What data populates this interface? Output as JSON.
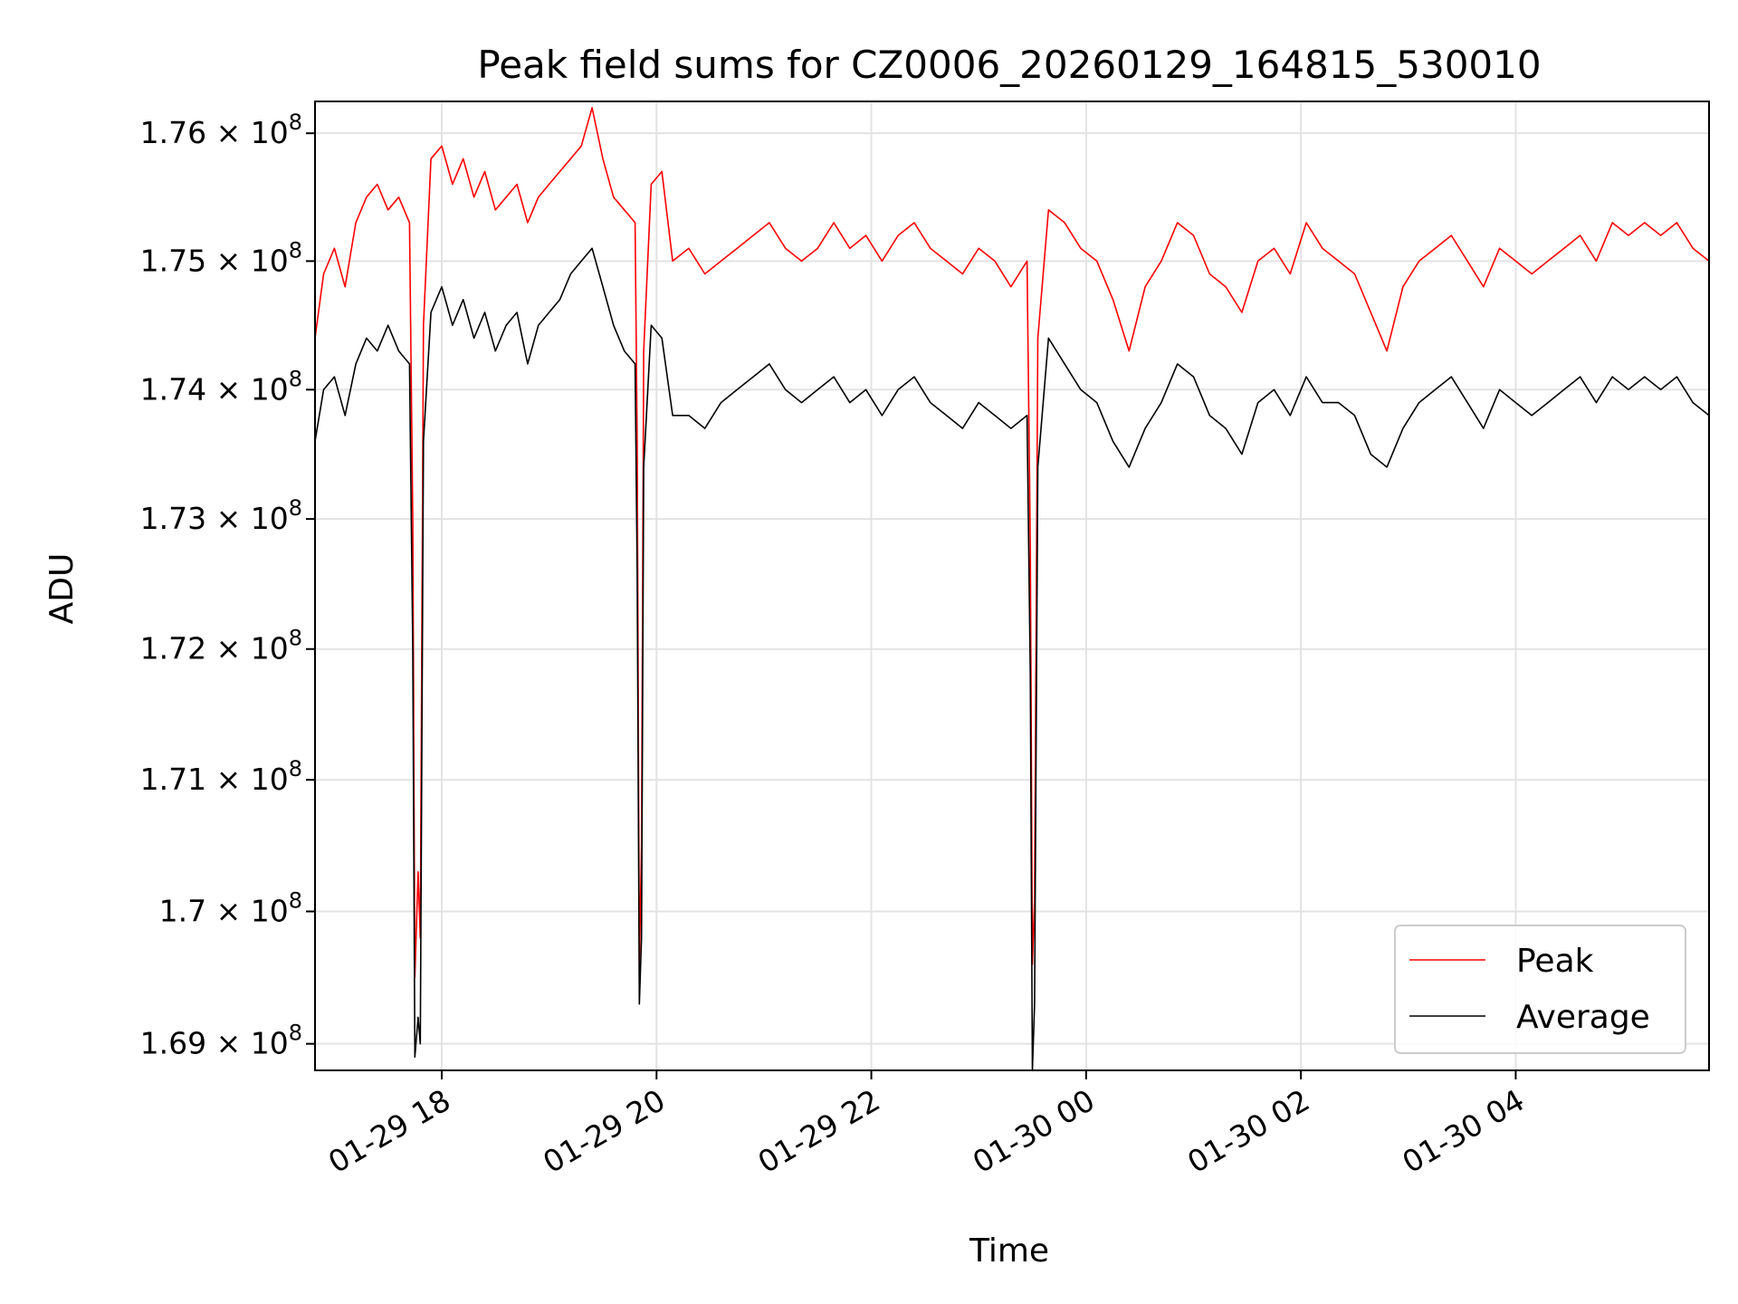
{
  "chart_data": {
    "type": "line",
    "title": "Peak field sums for CZ0006_20260129_164815_530010",
    "xlabel": "Time",
    "ylabel": "ADU",
    "y_scale": "log",
    "ylim": [
      168800000,
      176250000
    ],
    "xlim_hours": [
      16.82,
      29.8
    ],
    "grid": true,
    "legend_position": "lower-right",
    "x_ticks": [
      {
        "hours": 18,
        "label": "01-29 18"
      },
      {
        "hours": 20,
        "label": "01-29 20"
      },
      {
        "hours": 22,
        "label": "01-29 22"
      },
      {
        "hours": 24,
        "label": "01-30 00"
      },
      {
        "hours": 26,
        "label": "01-30 02"
      },
      {
        "hours": 28,
        "label": "01-30 04"
      }
    ],
    "y_ticks": [
      {
        "value": 169000000,
        "mantissa": "1.69"
      },
      {
        "value": 170000000,
        "mantissa": "1.7"
      },
      {
        "value": 171000000,
        "mantissa": "1.71"
      },
      {
        "value": 172000000,
        "mantissa": "1.72"
      },
      {
        "value": 173000000,
        "mantissa": "1.73"
      },
      {
        "value": 174000000,
        "mantissa": "1.74"
      },
      {
        "value": 175000000,
        "mantissa": "1.75"
      },
      {
        "value": 176000000,
        "mantissa": "1.76"
      }
    ],
    "y_tick_suffix": "× 10",
    "y_tick_exponent": "8",
    "series": [
      {
        "name": "Peak",
        "color": "#ff0000",
        "points": [
          [
            16.82,
            174400000
          ],
          [
            16.9,
            174900000
          ],
          [
            17.0,
            175100000
          ],
          [
            17.1,
            174800000
          ],
          [
            17.2,
            175300000
          ],
          [
            17.3,
            175500000
          ],
          [
            17.4,
            175600000
          ],
          [
            17.5,
            175400000
          ],
          [
            17.6,
            175500000
          ],
          [
            17.7,
            175300000
          ],
          [
            17.73,
            173000000
          ],
          [
            17.75,
            169500000
          ],
          [
            17.78,
            170300000
          ],
          [
            17.8,
            169800000
          ],
          [
            17.83,
            174500000
          ],
          [
            17.9,
            175800000
          ],
          [
            18.0,
            175900000
          ],
          [
            18.1,
            175600000
          ],
          [
            18.2,
            175800000
          ],
          [
            18.3,
            175500000
          ],
          [
            18.4,
            175700000
          ],
          [
            18.5,
            175400000
          ],
          [
            18.6,
            175500000
          ],
          [
            18.7,
            175600000
          ],
          [
            18.8,
            175300000
          ],
          [
            18.9,
            175500000
          ],
          [
            19.0,
            175600000
          ],
          [
            19.1,
            175700000
          ],
          [
            19.2,
            175800000
          ],
          [
            19.3,
            175900000
          ],
          [
            19.4,
            176200000
          ],
          [
            19.5,
            175800000
          ],
          [
            19.6,
            175500000
          ],
          [
            19.7,
            175400000
          ],
          [
            19.8,
            175300000
          ],
          [
            19.82,
            173600000
          ],
          [
            19.84,
            169600000
          ],
          [
            19.86,
            170500000
          ],
          [
            19.88,
            174300000
          ],
          [
            19.95,
            175600000
          ],
          [
            20.05,
            175700000
          ],
          [
            20.15,
            175000000
          ],
          [
            20.3,
            175100000
          ],
          [
            20.45,
            174900000
          ],
          [
            20.6,
            175000000
          ],
          [
            20.75,
            175100000
          ],
          [
            20.9,
            175200000
          ],
          [
            21.05,
            175300000
          ],
          [
            21.2,
            175100000
          ],
          [
            21.35,
            175000000
          ],
          [
            21.5,
            175100000
          ],
          [
            21.65,
            175300000
          ],
          [
            21.8,
            175100000
          ],
          [
            21.95,
            175200000
          ],
          [
            22.1,
            175000000
          ],
          [
            22.25,
            175200000
          ],
          [
            22.4,
            175300000
          ],
          [
            22.55,
            175100000
          ],
          [
            22.7,
            175000000
          ],
          [
            22.85,
            174900000
          ],
          [
            23.0,
            175100000
          ],
          [
            23.15,
            175000000
          ],
          [
            23.3,
            174800000
          ],
          [
            23.45,
            175000000
          ],
          [
            23.48,
            172800000
          ],
          [
            23.5,
            169600000
          ],
          [
            23.52,
            170100000
          ],
          [
            23.55,
            174400000
          ],
          [
            23.65,
            175400000
          ],
          [
            23.8,
            175300000
          ],
          [
            23.95,
            175100000
          ],
          [
            24.1,
            175000000
          ],
          [
            24.25,
            174700000
          ],
          [
            24.4,
            174300000
          ],
          [
            24.55,
            174800000
          ],
          [
            24.7,
            175000000
          ],
          [
            24.85,
            175300000
          ],
          [
            25.0,
            175200000
          ],
          [
            25.15,
            174900000
          ],
          [
            25.3,
            174800000
          ],
          [
            25.45,
            174600000
          ],
          [
            25.6,
            175000000
          ],
          [
            25.75,
            175100000
          ],
          [
            25.9,
            174900000
          ],
          [
            26.05,
            175300000
          ],
          [
            26.2,
            175100000
          ],
          [
            26.35,
            175000000
          ],
          [
            26.5,
            174900000
          ],
          [
            26.65,
            174600000
          ],
          [
            26.8,
            174300000
          ],
          [
            26.95,
            174800000
          ],
          [
            27.1,
            175000000
          ],
          [
            27.25,
            175100000
          ],
          [
            27.4,
            175200000
          ],
          [
            27.55,
            175000000
          ],
          [
            27.7,
            174800000
          ],
          [
            27.85,
            175100000
          ],
          [
            28.0,
            175000000
          ],
          [
            28.15,
            174900000
          ],
          [
            28.3,
            175000000
          ],
          [
            28.45,
            175100000
          ],
          [
            28.6,
            175200000
          ],
          [
            28.75,
            175000000
          ],
          [
            28.9,
            175300000
          ],
          [
            29.05,
            175200000
          ],
          [
            29.2,
            175300000
          ],
          [
            29.35,
            175200000
          ],
          [
            29.5,
            175300000
          ],
          [
            29.65,
            175100000
          ],
          [
            29.8,
            175000000
          ]
        ]
      },
      {
        "name": "Average",
        "color": "#000000",
        "points": [
          [
            16.82,
            173600000
          ],
          [
            16.9,
            174000000
          ],
          [
            17.0,
            174100000
          ],
          [
            17.1,
            173800000
          ],
          [
            17.2,
            174200000
          ],
          [
            17.3,
            174400000
          ],
          [
            17.4,
            174300000
          ],
          [
            17.5,
            174500000
          ],
          [
            17.6,
            174300000
          ],
          [
            17.7,
            174200000
          ],
          [
            17.73,
            172000000
          ],
          [
            17.75,
            168900000
          ],
          [
            17.78,
            169200000
          ],
          [
            17.8,
            169000000
          ],
          [
            17.83,
            173600000
          ],
          [
            17.9,
            174600000
          ],
          [
            18.0,
            174800000
          ],
          [
            18.1,
            174500000
          ],
          [
            18.2,
            174700000
          ],
          [
            18.3,
            174400000
          ],
          [
            18.4,
            174600000
          ],
          [
            18.5,
            174300000
          ],
          [
            18.6,
            174500000
          ],
          [
            18.7,
            174600000
          ],
          [
            18.8,
            174200000
          ],
          [
            18.9,
            174500000
          ],
          [
            19.0,
            174600000
          ],
          [
            19.1,
            174700000
          ],
          [
            19.2,
            174900000
          ],
          [
            19.3,
            175000000
          ],
          [
            19.4,
            175100000
          ],
          [
            19.5,
            174800000
          ],
          [
            19.6,
            174500000
          ],
          [
            19.7,
            174300000
          ],
          [
            19.8,
            174200000
          ],
          [
            19.82,
            172600000
          ],
          [
            19.84,
            169300000
          ],
          [
            19.86,
            169800000
          ],
          [
            19.88,
            173400000
          ],
          [
            19.95,
            174500000
          ],
          [
            20.05,
            174400000
          ],
          [
            20.15,
            173800000
          ],
          [
            20.3,
            173800000
          ],
          [
            20.45,
            173700000
          ],
          [
            20.6,
            173900000
          ],
          [
            20.75,
            174000000
          ],
          [
            20.9,
            174100000
          ],
          [
            21.05,
            174200000
          ],
          [
            21.2,
            174000000
          ],
          [
            21.35,
            173900000
          ],
          [
            21.5,
            174000000
          ],
          [
            21.65,
            174100000
          ],
          [
            21.8,
            173900000
          ],
          [
            21.95,
            174000000
          ],
          [
            22.1,
            173800000
          ],
          [
            22.25,
            174000000
          ],
          [
            22.4,
            174100000
          ],
          [
            22.55,
            173900000
          ],
          [
            22.7,
            173800000
          ],
          [
            22.85,
            173700000
          ],
          [
            23.0,
            173900000
          ],
          [
            23.15,
            173800000
          ],
          [
            23.3,
            173700000
          ],
          [
            23.45,
            173800000
          ],
          [
            23.48,
            171800000
          ],
          [
            23.5,
            168800000
          ],
          [
            23.52,
            169300000
          ],
          [
            23.55,
            173400000
          ],
          [
            23.65,
            174400000
          ],
          [
            23.8,
            174200000
          ],
          [
            23.95,
            174000000
          ],
          [
            24.1,
            173900000
          ],
          [
            24.25,
            173600000
          ],
          [
            24.4,
            173400000
          ],
          [
            24.55,
            173700000
          ],
          [
            24.7,
            173900000
          ],
          [
            24.85,
            174200000
          ],
          [
            25.0,
            174100000
          ],
          [
            25.15,
            173800000
          ],
          [
            25.3,
            173700000
          ],
          [
            25.45,
            173500000
          ],
          [
            25.6,
            173900000
          ],
          [
            25.75,
            174000000
          ],
          [
            25.9,
            173800000
          ],
          [
            26.05,
            174100000
          ],
          [
            26.2,
            173900000
          ],
          [
            26.35,
            173900000
          ],
          [
            26.5,
            173800000
          ],
          [
            26.65,
            173500000
          ],
          [
            26.8,
            173400000
          ],
          [
            26.95,
            173700000
          ],
          [
            27.1,
            173900000
          ],
          [
            27.25,
            174000000
          ],
          [
            27.4,
            174100000
          ],
          [
            27.55,
            173900000
          ],
          [
            27.7,
            173700000
          ],
          [
            27.85,
            174000000
          ],
          [
            28.0,
            173900000
          ],
          [
            28.15,
            173800000
          ],
          [
            28.3,
            173900000
          ],
          [
            28.45,
            174000000
          ],
          [
            28.6,
            174100000
          ],
          [
            28.75,
            173900000
          ],
          [
            28.9,
            174100000
          ],
          [
            29.05,
            174000000
          ],
          [
            29.2,
            174100000
          ],
          [
            29.35,
            174000000
          ],
          [
            29.5,
            174100000
          ],
          [
            29.65,
            173900000
          ],
          [
            29.8,
            173800000
          ]
        ]
      }
    ]
  }
}
